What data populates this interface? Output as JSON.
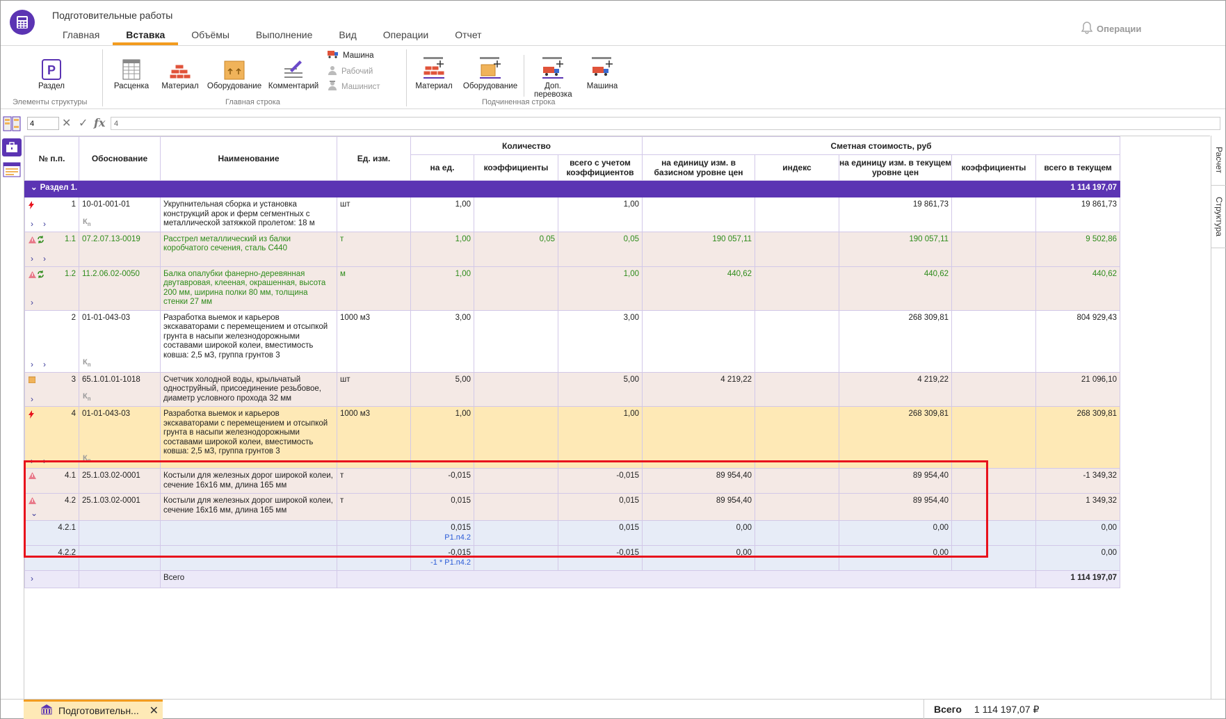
{
  "app": {
    "title": "Подготовительные работы",
    "operations": "Операции"
  },
  "tabs": [
    "Главная",
    "Вставка",
    "Объёмы",
    "Выполнение",
    "Вид",
    "Операции",
    "Отчет"
  ],
  "ribbon": {
    "section_btn": "Раздел",
    "group1": "Элементы структуры",
    "rate_btn": "Расценка",
    "material_btn": "Материал",
    "equipment_btn": "Оборудование",
    "comment_btn": "Комментарий",
    "machine_small": "Машина",
    "worker_small": "Рабочий",
    "operator_small": "Машинист",
    "group2": "Главная строка",
    "sub_material_btn": "Материал",
    "sub_equipment_btn": "Оборудование",
    "sub_transport_btn": "Доп. перевозка",
    "sub_machine_btn": "Машина",
    "group3": "Подчиненная строка"
  },
  "formula": {
    "cell": "4",
    "value": "4"
  },
  "headers": {
    "num": "№ п.п.",
    "basis": "Обоснование",
    "name": "Наименование",
    "unit": "Ед. изм.",
    "qty_group": "Количество",
    "qty_per": "на ед.",
    "qty_coef": "коэффициенты",
    "qty_total": "всего с учетом коэффициентов",
    "cost_group": "Сметная стоимость, руб",
    "cost_base": "на единицу изм. в базисном уровне цен",
    "cost_index": "индекс",
    "cost_cur": "на единицу изм. в текущем уровне цен",
    "cost_coef": "коэффициенты",
    "cost_total": "всего в текущем"
  },
  "section": {
    "label": "Раздел 1.",
    "total": "1 114 197,07"
  },
  "rows": [
    {
      "num": "1",
      "basis": "10-01-001-01",
      "name": "Укрупнительная сборка и установка конструкций арок и ферм сегментных с металлической затяжкой пролетом: 18 м",
      "unit": "шт",
      "qty": "1,00",
      "qcoef": "",
      "qtotal": "1,00",
      "base": "",
      "index": "",
      "cur": "19 861,73",
      "ccoef": "",
      "total": "19 861,73"
    },
    {
      "num": "1.1",
      "basis": "07.2.07.13-0019",
      "name": "Расстрел металлический из балки коробчатого сечения, сталь С440",
      "unit": "т",
      "qty": "1,00",
      "qcoef": "0,05",
      "qtotal": "0,05",
      "base": "190 057,11",
      "index": "",
      "cur": "190 057,11",
      "ccoef": "",
      "total": "9 502,86"
    },
    {
      "num": "1.2",
      "basis": "11.2.06.02-0050",
      "name": "Балка опалубки фанерно-деревянная двутавровая, клееная, окрашенная, высота 200 мм, ширина полки 80 мм, толщина стенки 27 мм",
      "unit": "м",
      "qty": "1,00",
      "qcoef": "",
      "qtotal": "1,00",
      "base": "440,62",
      "index": "",
      "cur": "440,62",
      "ccoef": "",
      "total": "440,62"
    },
    {
      "num": "2",
      "basis": "01-01-043-03",
      "name": "Разработка выемок и карьеров экскаваторами с перемещением и отсыпкой грунта в насыпи железнодорожными составами широкой колеи, вместимость ковша: 2,5 м3, группа грунтов 3",
      "unit": "1000 м3",
      "qty": "3,00",
      "qcoef": "",
      "qtotal": "3,00",
      "base": "",
      "index": "",
      "cur": "268 309,81",
      "ccoef": "",
      "total": "804 929,43"
    },
    {
      "num": "3",
      "basis": "65.1.01.01-1018",
      "name": "Счетчик холодной воды, крыльчатый одноструйный, присоединение резьбовое, диаметр условного прохода 32 мм",
      "unit": "шт",
      "qty": "5,00",
      "qcoef": "",
      "qtotal": "5,00",
      "base": "4 219,22",
      "index": "",
      "cur": "4 219,22",
      "ccoef": "",
      "total": "21 096,10"
    },
    {
      "num": "4",
      "basis": "01-01-043-03",
      "name": "Разработка выемок и карьеров экскаваторами с перемещением и отсыпкой грунта в насыпи железнодорожными составами широкой колеи, вместимость ковша: 2,5 м3, группа грунтов 3",
      "unit": "1000 м3",
      "qty": "1,00",
      "qcoef": "",
      "qtotal": "1,00",
      "base": "",
      "index": "",
      "cur": "268 309,81",
      "ccoef": "",
      "total": "268 309,81"
    },
    {
      "num": "4.1",
      "basis": "25.1.03.02-0001",
      "name": "Костыли для железных дорог широкой колеи, сечение 16х16 мм, длина 165 мм",
      "unit": "т",
      "qty": "-0,015",
      "qcoef": "",
      "qtotal": "-0,015",
      "base": "89 954,40",
      "index": "",
      "cur": "89 954,40",
      "ccoef": "",
      "total": "-1 349,32"
    },
    {
      "num": "4.2",
      "basis": "25.1.03.02-0001",
      "name": "Костыли для железных дорог широкой колеи, сечение 16х16 мм, длина 165 мм",
      "unit": "т",
      "qty": "0,015",
      "qcoef": "",
      "qtotal": "0,015",
      "base": "89 954,40",
      "index": "",
      "cur": "89 954,40",
      "ccoef": "",
      "total": "1 349,32"
    },
    {
      "num": "4.2.1",
      "basis": "",
      "name": "",
      "unit": "",
      "qty": "0,015",
      "qsub": "Р1.п4.2",
      "qcoef": "",
      "qtotal": "0,015",
      "base": "0,00",
      "index": "",
      "cur": "0,00",
      "ccoef": "",
      "total": "0,00"
    },
    {
      "num": "4.2.2",
      "basis": "",
      "name": "",
      "unit": "",
      "qty": "-0,015",
      "qsub": "-1 * Р1.п4.2",
      "qcoef": "",
      "qtotal": "-0,015",
      "base": "0,00",
      "index": "",
      "cur": "0,00",
      "ccoef": "",
      "total": "0,00"
    }
  ],
  "total_row": {
    "label": "Всего",
    "total": "1 114 197,07"
  },
  "kn": "К",
  "kn_sub": "п",
  "right_tabs": [
    "Расчет",
    "Структура"
  ],
  "bottom": {
    "doc_tab": "Подготовительн...",
    "total_label": "Всего",
    "total_value": "1 114 197,07 ₽"
  },
  "colors": {
    "accent": "#5b34b3",
    "tab_underline": "#f39c1f",
    "highlight": "#e8121c"
  }
}
